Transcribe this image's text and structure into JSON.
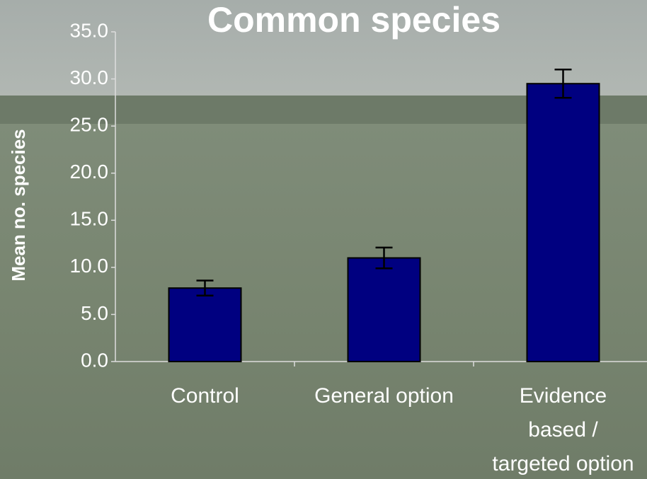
{
  "chart_data": {
    "type": "bar",
    "title": "Common species",
    "y_label": "Mean no. species",
    "categories": [
      "Control",
      "General option",
      "Evidence\nbased /\ntargeted option"
    ],
    "values": [
      7.8,
      11.0,
      29.5
    ],
    "errors": [
      0.8,
      1.1,
      1.5
    ],
    "color": "#000080",
    "ylim": [
      0,
      35
    ],
    "yticks": [
      {
        "value": 0,
        "label": "0.0"
      },
      {
        "value": 5,
        "label": "5.0"
      },
      {
        "value": 10,
        "label": "10.0"
      },
      {
        "value": 15,
        "label": "15.0"
      },
      {
        "value": 20,
        "label": "20.0"
      },
      {
        "value": 25,
        "label": "25.0"
      },
      {
        "value": 30,
        "label": "30.0"
      },
      {
        "value": 35,
        "label": "35.0"
      }
    ]
  }
}
